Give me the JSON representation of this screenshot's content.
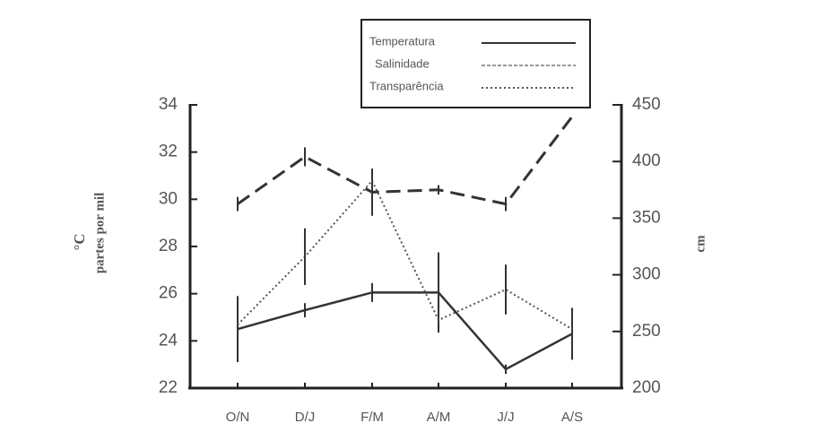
{
  "chart_data": {
    "type": "line",
    "categories": [
      "O/N",
      "D/J",
      "F/M",
      "A/M",
      "J/J",
      "A/S"
    ],
    "y_label": [
      "°C",
      "partes por mil"
    ],
    "y2_label": "cm",
    "ylim": [
      22,
      34
    ],
    "yticks": [
      22,
      24,
      26,
      28,
      30,
      32,
      34
    ],
    "y2lim": [
      200,
      450
    ],
    "y2ticks": [
      200,
      250,
      300,
      350,
      400,
      450
    ],
    "legend": "top",
    "series": [
      {
        "name": "Temperatura",
        "color": "#333333",
        "style": "solid",
        "axis": "y",
        "values": [
          24.5,
          25.3,
          26.05,
          26.05,
          22.8,
          24.3
        ],
        "errors": [
          1.4,
          0.3,
          0.4,
          1.7,
          0.2,
          1.1
        ]
      },
      {
        "name": "Salinidade",
        "color": "#333333",
        "style": "dashed",
        "axis": "y",
        "values": [
          29.8,
          31.8,
          30.3,
          30.4,
          29.8,
          33.5
        ],
        "errors": [
          0.3,
          0.4,
          1.0,
          0.2,
          0.3,
          null
        ]
      },
      {
        "name": "Transparência",
        "color": "#555555",
        "style": "dotted",
        "axis": "y2",
        "values": [
          256,
          316,
          383,
          260,
          287,
          252
        ],
        "errors": [
          null,
          25,
          null,
          null,
          22,
          null
        ]
      }
    ]
  }
}
